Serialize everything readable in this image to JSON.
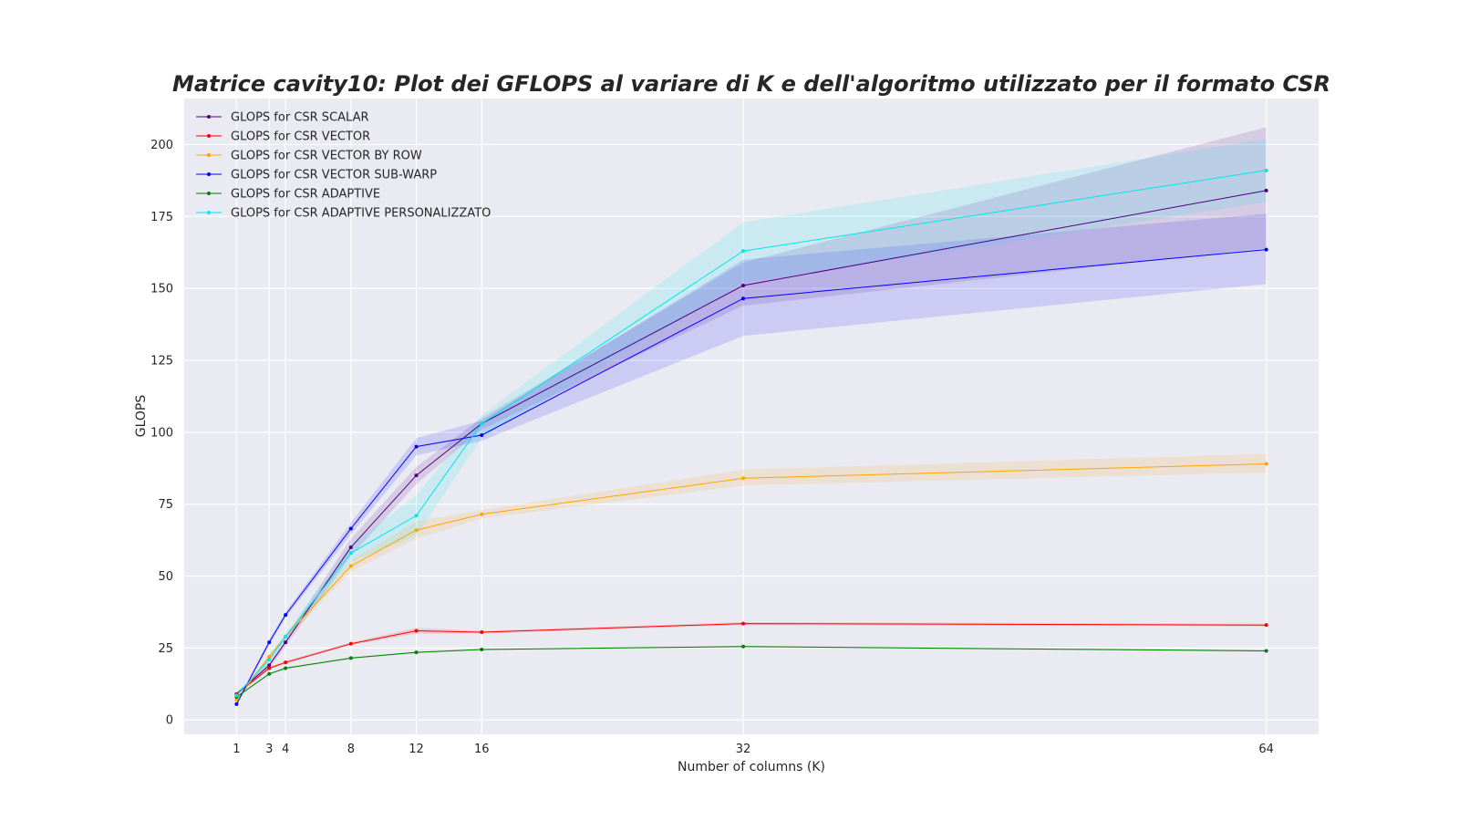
{
  "chart_data": {
    "type": "line",
    "title": "Matrice cavity10: Plot dei GFLOPS al variare di K e dell'algoritmo utilizzato per il formato CSR",
    "xlabel": "Number of columns (K)",
    "ylabel": "GLOPS",
    "x": [
      1,
      3,
      4,
      8,
      12,
      16,
      32,
      64
    ],
    "x_tick_labels": [
      "1",
      "3",
      "4",
      "8",
      "12",
      "16",
      "32",
      "64"
    ],
    "xlim": [
      -2.2,
      67.2
    ],
    "ylim": [
      -5,
      216
    ],
    "y_ticks": [
      0,
      25,
      50,
      75,
      100,
      125,
      150,
      175,
      200
    ],
    "y_tick_labels": [
      "0",
      "25",
      "50",
      "75",
      "100",
      "125",
      "150",
      "175",
      "200"
    ],
    "grid": true,
    "background": "#eaeaf2",
    "legend_position": "upper-left",
    "series": [
      {
        "name": "GLOPS for CSR SCALAR",
        "color": "#4b0082",
        "values": [
          9,
          19,
          27,
          60,
          85,
          103,
          151,
          184
        ],
        "lower": [
          8.5,
          18,
          25.5,
          57,
          82,
          101,
          144,
          164
        ],
        "upper": [
          9.5,
          20,
          28.5,
          63,
          88,
          105,
          159,
          206
        ]
      },
      {
        "name": "GLOPS for CSR VECTOR",
        "color": "#ff0000",
        "values": [
          9,
          18,
          20,
          26.5,
          31,
          30.5,
          33.5,
          33
        ],
        "lower": [
          8.5,
          17.5,
          19.5,
          26,
          30,
          30,
          33,
          32.5
        ],
        "upper": [
          9.5,
          18.5,
          20.5,
          27,
          32,
          31,
          34,
          33.5
        ]
      },
      {
        "name": "GLOPS for CSR VECTOR BY ROW",
        "color": "#ffa500",
        "values": [
          7,
          22,
          29,
          53.5,
          66,
          71.5,
          84,
          89
        ],
        "lower": [
          6.5,
          21,
          28,
          51.5,
          63,
          70,
          81.5,
          86
        ],
        "upper": [
          7.5,
          23,
          30,
          55.5,
          69,
          73,
          87,
          92.5
        ]
      },
      {
        "name": "GLOPS for CSR VECTOR SUB-WARP",
        "color": "#0000ff",
        "values": [
          5.5,
          27,
          36.5,
          66.5,
          95,
          99,
          146.5,
          163.5
        ],
        "lower": [
          5,
          26,
          35.5,
          64.5,
          92,
          97,
          133.5,
          151.5
        ],
        "upper": [
          6,
          28,
          37.5,
          68.5,
          98,
          104,
          160,
          176
        ]
      },
      {
        "name": "GLOPS for CSR ADAPTIVE",
        "color": "#008000",
        "values": [
          8,
          16,
          18,
          21.5,
          23.5,
          24.5,
          25.5,
          24
        ],
        "lower": [
          7.7,
          15.7,
          17.7,
          21.2,
          23.2,
          24.2,
          25.2,
          23.7
        ],
        "upper": [
          8.3,
          16.3,
          18.3,
          21.8,
          23.8,
          24.8,
          25.8,
          24.3
        ]
      },
      {
        "name": "GLOPS for CSR ADAPTIVE PERSONALIZZATO",
        "color": "#00e5ee",
        "values": [
          8.5,
          21,
          29,
          58,
          71,
          103,
          163,
          191
        ],
        "lower": [
          8,
          20,
          28,
          55,
          64,
          98,
          152,
          180
        ],
        "upper": [
          9,
          22,
          30,
          61,
          78,
          106,
          173,
          202
        ]
      }
    ]
  }
}
